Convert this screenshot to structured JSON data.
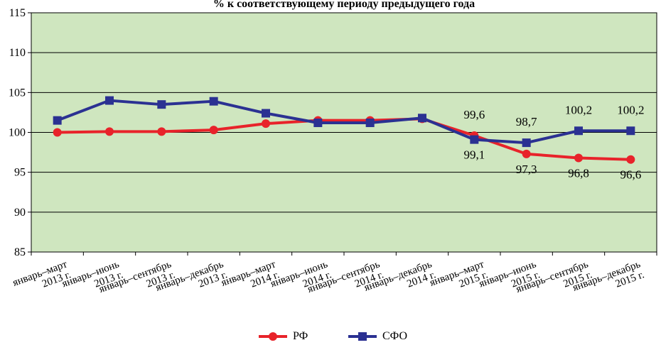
{
  "chart_data": {
    "type": "line",
    "title": "% к соответствующему периоду предыдущего года",
    "categories": [
      [
        "январь–март",
        "2013 г."
      ],
      [
        "январь–июнь",
        "2013 г."
      ],
      [
        "январь–сентябрь",
        "2013 г."
      ],
      [
        "январь–декабрь",
        "2013 г."
      ],
      [
        "январь–март",
        "2014 г."
      ],
      [
        "январь–июнь",
        "2014 г."
      ],
      [
        "январь–сентябрь",
        "2014 г."
      ],
      [
        "январь–декабрь",
        "2014 г."
      ],
      [
        "январь–март",
        "2015 г."
      ],
      [
        "январь–июнь",
        "2015 г."
      ],
      [
        "январь–сентябрь",
        "2015 г."
      ],
      [
        "январь–декабрь",
        "2015 г."
      ]
    ],
    "series": [
      {
        "name": "РФ",
        "color": "#e8232a",
        "marker": "circle",
        "values": [
          100.0,
          100.1,
          100.1,
          100.3,
          101.1,
          101.5,
          101.5,
          101.7,
          99.6,
          97.3,
          96.8,
          96.6
        ],
        "labels": [
          "",
          "",
          "",
          "",
          "",
          "",
          "",
          "",
          "99,6",
          "97,3",
          "96,8",
          "96,6"
        ]
      },
      {
        "name": "СФО",
        "color": "#2b3192",
        "marker": "square",
        "values": [
          101.5,
          104.0,
          103.5,
          103.9,
          102.4,
          101.2,
          101.2,
          101.8,
          99.1,
          98.7,
          100.2,
          100.2
        ],
        "labels": [
          "",
          "",
          "",
          "",
          "",
          "",
          "",
          "",
          "99,1",
          "98,7",
          "100,2",
          "100,2"
        ]
      }
    ],
    "ylim": [
      85,
      115
    ],
    "yticks": [
      85,
      90,
      95,
      100,
      105,
      110,
      115
    ],
    "grid": true,
    "plot_background": "#cfe6bf",
    "legend": "bottom-center"
  }
}
